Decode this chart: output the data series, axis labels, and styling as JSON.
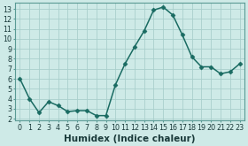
{
  "x": [
    0,
    1,
    2,
    3,
    4,
    5,
    6,
    7,
    8,
    9,
    10,
    11,
    12,
    13,
    14,
    15,
    16,
    17,
    18,
    19,
    20,
    21,
    22,
    23
  ],
  "y": [
    6.0,
    4.0,
    2.6,
    3.7,
    3.3,
    2.7,
    2.8,
    2.8,
    2.3,
    2.3,
    5.4,
    7.5,
    9.2,
    10.8,
    12.9,
    13.2,
    12.4,
    10.4,
    8.2,
    7.2,
    7.2,
    6.5,
    6.7,
    7.5
  ],
  "line_color": "#1a6b62",
  "marker": "D",
  "marker_size": 2.5,
  "bg_color": "#ceeae7",
  "grid_color": "#aacfcc",
  "xlabel": "Humidex (Indice chaleur)",
  "ylim": [
    1.8,
    13.6
  ],
  "xlim": [
    -0.5,
    23.5
  ],
  "yticks": [
    2,
    3,
    4,
    5,
    6,
    7,
    8,
    9,
    10,
    11,
    12,
    13
  ],
  "xticks": [
    0,
    1,
    2,
    3,
    4,
    5,
    6,
    7,
    8,
    9,
    10,
    11,
    12,
    13,
    14,
    15,
    16,
    17,
    18,
    19,
    20,
    21,
    22,
    23
  ],
  "tick_fontsize": 5.8,
  "label_fontsize": 7.5,
  "line_width": 1.1
}
